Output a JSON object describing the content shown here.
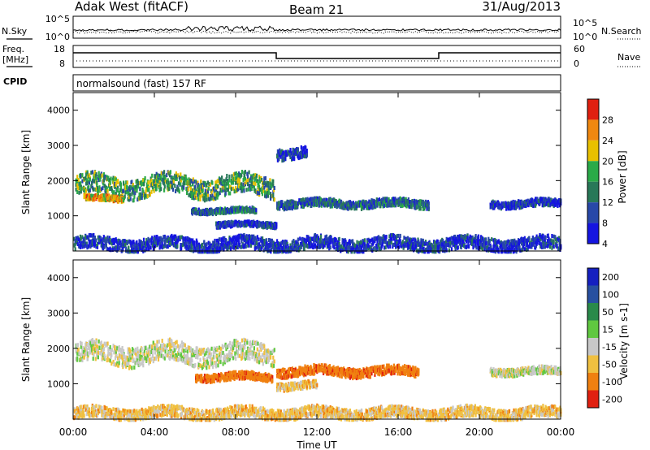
{
  "header": {
    "title": "Adak West (fitACF)",
    "beam": "Beam 21",
    "date": "31/Aug/2013"
  },
  "noise_panel": {
    "left_label": "N.Sky",
    "right_label": "N.Search",
    "ticks_left": [
      "10^5",
      "10^0"
    ],
    "ticks_right": [
      "10^5",
      "10^0"
    ]
  },
  "freq_panel": {
    "left_label_line1": "Freq.",
    "left_label_line2": "[MHz]",
    "right_label": "Nave",
    "ticks_left": [
      "18",
      "8"
    ],
    "ticks_right": [
      "60",
      "0"
    ]
  },
  "cpid_panel": {
    "label": "CPID",
    "text": "normalsound (fast) 157 RF"
  },
  "chart_data": [
    {
      "type": "heatmap",
      "name": "power",
      "ylabel": "Slant Range [km]",
      "ylim": [
        0,
        4500
      ],
      "yticks": [
        1000,
        2000,
        3000,
        4000
      ],
      "xlim": [
        "00:00",
        "24:00"
      ],
      "colorbar_label": "Power [dB]",
      "colorbar_ticks": [
        "4",
        "8",
        "12",
        "16",
        "20",
        "24",
        "28"
      ],
      "colorbar_colors": [
        "#1515e0",
        "#2848a8",
        "#287858",
        "#2aaa48",
        "#e8c000",
        "#f08810",
        "#e02010"
      ],
      "echo_bands": [
        {
          "x_start": 0.1,
          "x_end": 9.9,
          "y_center": 1900,
          "y_width": 550,
          "power": 16
        },
        {
          "x_start": 0.5,
          "x_end": 2.5,
          "y_center": 1550,
          "y_width": 150,
          "power": 24
        },
        {
          "x_start": 5.8,
          "x_end": 9.0,
          "y_center": 1200,
          "y_width": 140,
          "power": 10
        },
        {
          "x_start": 7.0,
          "x_end": 10.0,
          "y_center": 800,
          "y_width": 140,
          "power": 8
        },
        {
          "x_start": 10.0,
          "x_end": 17.5,
          "y_center": 1400,
          "y_width": 220,
          "power": 12
        },
        {
          "x_start": 10.0,
          "x_end": 11.5,
          "y_center": 2850,
          "y_width": 300,
          "power": 6
        },
        {
          "x_start": 20.5,
          "x_end": 24.0,
          "y_center": 1400,
          "y_width": 200,
          "power": 6
        },
        {
          "x_start": 0.0,
          "x_end": 24.0,
          "y_center": 250,
          "y_width": 350,
          "power": 6
        }
      ]
    },
    {
      "type": "heatmap",
      "name": "velocity",
      "ylabel": "Slant Range [km]",
      "xlabel": "Time UT",
      "ylim": [
        0,
        4500
      ],
      "yticks": [
        1000,
        2000,
        3000,
        4000
      ],
      "xlim": [
        "00:00",
        "24:00"
      ],
      "xticks": [
        "00:00",
        "04:00",
        "08:00",
        "12:00",
        "16:00",
        "20:00",
        "00:00"
      ],
      "colorbar_label": "Velocity [m s-1]",
      "colorbar_ticks": [
        "200",
        "100",
        "50",
        "15",
        "-15",
        "-50",
        "-100",
        "-200"
      ],
      "colorbar_colors": [
        "#1520c0",
        "#2850a0",
        "#2a8a4a",
        "#60c840",
        "#c8c8c8",
        "#f0c040",
        "#f08010",
        "#e02010"
      ],
      "echo_bands": [
        {
          "x_start": 0.1,
          "x_end": 9.9,
          "y_center": 1900,
          "y_width": 550,
          "velocity": 0
        },
        {
          "x_start": 6.0,
          "x_end": 9.8,
          "y_center": 1250,
          "y_width": 200,
          "velocity": -80
        },
        {
          "x_start": 10.0,
          "x_end": 17.0,
          "y_center": 1400,
          "y_width": 250,
          "velocity": -80
        },
        {
          "x_start": 10.0,
          "x_end": 12.0,
          "y_center": 1000,
          "y_width": 200,
          "velocity": -30
        },
        {
          "x_start": 20.5,
          "x_end": 24.0,
          "y_center": 1400,
          "y_width": 200,
          "velocity": 0
        },
        {
          "x_start": 0.0,
          "x_end": 24.0,
          "y_center": 220,
          "y_width": 300,
          "velocity": -30
        }
      ]
    }
  ]
}
